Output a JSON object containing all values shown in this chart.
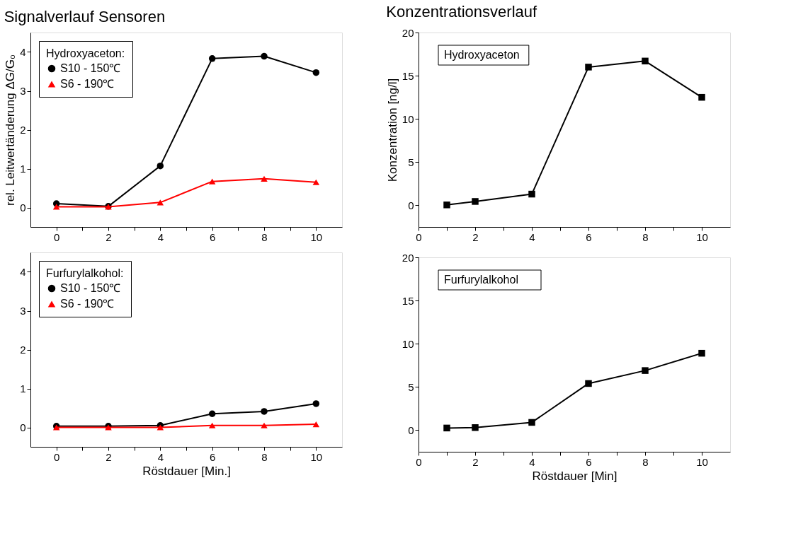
{
  "chart_data": [
    {
      "type": "line",
      "title": "Signalverlauf Sensoren",
      "ylabel": "rel. Leitwertänderung  ΔG/G₀",
      "legend_title": "Hydroxyaceton:",
      "legend": "top left",
      "x": [
        0,
        2,
        4,
        6,
        8,
        10
      ],
      "series": [
        {
          "name": "S10 - 150℃",
          "color": "#000000",
          "marker": "circle",
          "values": [
            0.1,
            0.03,
            1.07,
            3.83,
            3.89,
            3.47
          ]
        },
        {
          "name": "S6 - 190℃",
          "color": "#ff0000",
          "marker": "triangle",
          "values": [
            0.02,
            0.02,
            0.13,
            0.67,
            0.74,
            0.65
          ]
        }
      ],
      "xlim": [
        -1,
        11
      ],
      "ylim": [
        -0.5,
        4.5
      ],
      "xticks": [
        0,
        {
          "value": 1,
          "label": null
        },
        2,
        {
          "value": 3,
          "label": null
        },
        4,
        {
          "value": 5,
          "label": null
        },
        6,
        {
          "value": 7,
          "label": null
        },
        8,
        {
          "value": 9,
          "label": null
        },
        10
      ],
      "yticks": [
        0,
        1,
        2,
        3,
        4
      ]
    },
    {
      "type": "line",
      "xlabel": "Röstdauer [Min.]",
      "legend_title": "Furfurylalkohol:",
      "legend": "top left",
      "x": [
        0,
        2,
        4,
        6,
        8,
        10
      ],
      "series": [
        {
          "name": "S10 - 150℃",
          "color": "#000000",
          "marker": "circle",
          "values": [
            0.03,
            0.03,
            0.05,
            0.35,
            0.41,
            0.61
          ]
        },
        {
          "name": "S6 - 190℃",
          "color": "#ff0000",
          "marker": "triangle",
          "values": [
            0.0,
            0.0,
            0.0,
            0.05,
            0.05,
            0.08
          ]
        }
      ],
      "xlim": [
        -1,
        11
      ],
      "ylim": [
        -0.5,
        4.5
      ],
      "xticks": [
        0,
        {
          "value": 1,
          "label": null
        },
        2,
        {
          "value": 3,
          "label": null
        },
        4,
        {
          "value": 5,
          "label": null
        },
        6,
        {
          "value": 7,
          "label": null
        },
        8,
        {
          "value": 9,
          "label": null
        },
        10
      ],
      "yticks": [
        0,
        1,
        2,
        3,
        4
      ]
    },
    {
      "type": "line",
      "title": "Konzentrationsverlauf",
      "ylabel": "Konzentration [ng/l]",
      "annotations": [
        "Hydroxyaceton"
      ],
      "marker": "square",
      "x": [
        1,
        2,
        4,
        6,
        8,
        10
      ],
      "series": [
        {
          "color": "#000000",
          "values": [
            0.05,
            0.45,
            1.3,
            16.0,
            16.7,
            12.5
          ]
        }
      ],
      "xlim": [
        0,
        11
      ],
      "ylim": [
        -2.5,
        20
      ],
      "xticks": [
        0,
        {
          "value": 1,
          "label": null
        },
        2,
        {
          "value": 3,
          "label": null
        },
        4,
        {
          "value": 5,
          "label": null
        },
        6,
        {
          "value": 7,
          "label": null
        },
        8,
        {
          "value": 9,
          "label": null
        },
        10
      ],
      "yticks": [
        0,
        5,
        10,
        15,
        20
      ]
    },
    {
      "type": "line",
      "xlabel": "Röstdauer [Min]",
      "annotations": [
        "Furfurylalkohol"
      ],
      "marker": "square",
      "x": [
        1,
        2,
        4,
        6,
        8,
        10
      ],
      "series": [
        {
          "color": "#000000",
          "values": [
            0.25,
            0.3,
            0.9,
            5.4,
            6.9,
            8.9
          ]
        }
      ],
      "xlim": [
        0,
        11
      ],
      "ylim": [
        -2.5,
        20
      ],
      "xticks": [
        0,
        {
          "value": 1,
          "label": null
        },
        2,
        {
          "value": 3,
          "label": null
        },
        4,
        {
          "value": 5,
          "label": null
        },
        6,
        {
          "value": 7,
          "label": null
        },
        8,
        {
          "value": 9,
          "label": null
        },
        10
      ],
      "yticks": [
        0,
        5,
        10,
        15,
        20
      ]
    }
  ]
}
